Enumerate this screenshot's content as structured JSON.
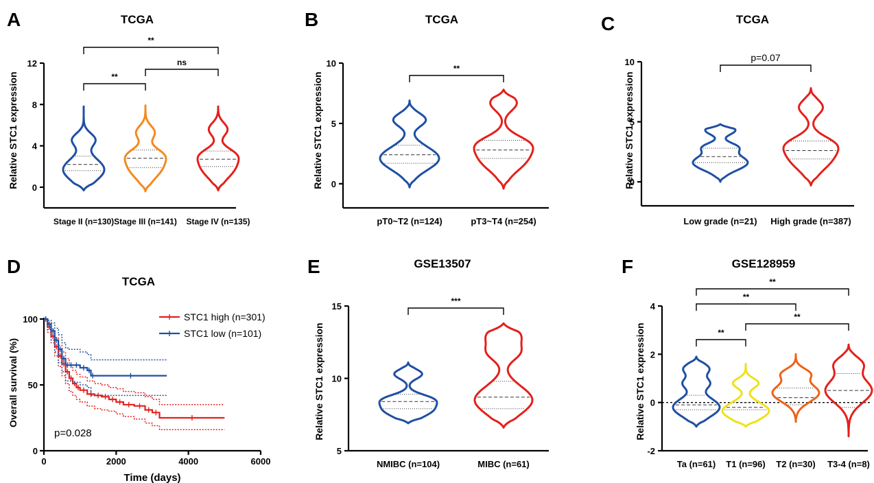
{
  "colors": {
    "blue": "#1f4fa3",
    "orange": "#f28a1e",
    "red": "#e3201b",
    "yellow": "#ede21a",
    "darkorange": "#ee6218"
  },
  "panels": {
    "A": {
      "letter": "A",
      "title": "TCGA"
    },
    "B": {
      "letter": "B",
      "title": "TCGA"
    },
    "C": {
      "letter": "C",
      "title": "TCGA"
    },
    "D": {
      "letter": "D",
      "title": "TCGA"
    },
    "E": {
      "letter": "E",
      "title": "GSE13507"
    },
    "F": {
      "letter": "F",
      "title": "GSE128959"
    }
  },
  "chart_data": [
    {
      "id": "A",
      "type": "violin",
      "title": "TCGA",
      "ylabel": "Relative STC1 expression",
      "xlabel": "",
      "ylim": [
        -2,
        12
      ],
      "yticks": [
        0,
        4,
        8,
        12
      ],
      "categories": [
        "Stage II (n=130)",
        "Stage III (n=141)",
        "Stage IV (n=135)"
      ],
      "colors": [
        "#1f4fa3",
        "#f28a1e",
        "#e3201b"
      ],
      "groups": [
        {
          "min": -0.3,
          "q1": 1.6,
          "median": 2.2,
          "q3": 3.0,
          "max": 7.8,
          "modes": [
            1.7,
            4.6
          ]
        },
        {
          "min": -0.4,
          "q1": 1.9,
          "median": 2.8,
          "q3": 3.6,
          "max": 7.9,
          "modes": [
            2.0,
            3.2,
            5.3
          ]
        },
        {
          "min": -0.3,
          "q1": 2.0,
          "median": 2.7,
          "q3": 3.5,
          "max": 7.8,
          "modes": [
            2.0,
            3.2,
            5.6
          ]
        }
      ],
      "significance": [
        {
          "from": 0,
          "to": 1,
          "label": "**"
        },
        {
          "from": 1,
          "to": 2,
          "label": "ns"
        },
        {
          "from": 0,
          "to": 2,
          "label": "**"
        }
      ]
    },
    {
      "id": "B",
      "type": "violin",
      "title": "TCGA",
      "ylabel": "Relative STC1 expression",
      "xlabel": "",
      "ylim": [
        -2,
        10
      ],
      "yticks": [
        0,
        5,
        10
      ],
      "categories": [
        "pT0~T2 (n=124)",
        "pT3~T4 (n=254)"
      ],
      "colors": [
        "#1f4fa3",
        "#e3201b"
      ],
      "groups": [
        {
          "min": -0.3,
          "q1": 1.7,
          "median": 2.4,
          "q3": 3.2,
          "max": 6.9,
          "modes": [
            2.1,
            5.3
          ]
        },
        {
          "min": -0.4,
          "q1": 2.1,
          "median": 2.8,
          "q3": 3.6,
          "max": 7.8,
          "modes": [
            2.2,
            3.4,
            6.7
          ]
        }
      ],
      "significance": [
        {
          "from": 0,
          "to": 1,
          "label": "**"
        }
      ]
    },
    {
      "id": "C",
      "type": "violin",
      "title": "TCGA",
      "ylabel": "Relative STC1 expression",
      "xlabel": "",
      "ylim": [
        -2,
        10
      ],
      "yticks": [
        0,
        5,
        10
      ],
      "categories": [
        "Low grade (n=21)",
        "High grade (n=387)"
      ],
      "colors": [
        "#1f4fa3",
        "#e3201b"
      ],
      "groups": [
        {
          "min": 0.0,
          "q1": 1.6,
          "median": 2.1,
          "q3": 2.8,
          "max": 4.8,
          "modes": [
            1.6,
            2.9,
            4.3
          ]
        },
        {
          "min": -0.3,
          "q1": 1.9,
          "median": 2.6,
          "q3": 3.4,
          "max": 7.8,
          "modes": [
            2.1,
            3.2,
            6.2
          ]
        }
      ],
      "significance": [
        {
          "from": 0,
          "to": 1,
          "label": "p=0.07"
        }
      ]
    },
    {
      "id": "D",
      "type": "line",
      "title": "TCGA",
      "xlabel": "Time (days)",
      "ylabel": "Overall survival (%)",
      "xlim": [
        0,
        6000
      ],
      "ylim": [
        0,
        100
      ],
      "xticks": [
        0,
        2000,
        4000,
        6000
      ],
      "yticks": [
        0,
        50,
        100
      ],
      "annotation": "p=0.028",
      "series": [
        {
          "name": "STC1 high (n=301)",
          "color": "#e3201b",
          "x": [
            0,
            100,
            200,
            300,
            400,
            500,
            600,
            700,
            800,
            900,
            1000,
            1200,
            1400,
            1600,
            1800,
            2000,
            2200,
            2500,
            2800,
            3000,
            3200,
            5000
          ],
          "y": [
            100,
            94,
            87,
            79,
            72,
            66,
            60,
            55,
            51,
            48,
            46,
            43,
            42,
            41,
            39,
            37,
            35,
            34,
            31,
            29,
            25,
            25
          ],
          "ci_upper": [
            100,
            97,
            92,
            86,
            80,
            75,
            70,
            65,
            61,
            58,
            56,
            53,
            51,
            50,
            48,
            47,
            45,
            44,
            41,
            39,
            35,
            35
          ],
          "ci_lower": [
            100,
            90,
            82,
            72,
            64,
            57,
            51,
            45,
            42,
            39,
            37,
            34,
            32,
            31,
            30,
            28,
            26,
            24,
            21,
            19,
            16,
            16
          ]
        },
        {
          "name": "STC1 low (n=101)",
          "color": "#1f4fa3",
          "x": [
            0,
            100,
            200,
            300,
            400,
            500,
            600,
            700,
            800,
            1000,
            1200,
            1300,
            1400,
            3400
          ],
          "y": [
            100,
            96,
            91,
            84,
            77,
            70,
            65,
            65,
            65,
            63,
            61,
            57,
            57,
            57
          ],
          "ci_upper": [
            100,
            99,
            97,
            93,
            88,
            82,
            78,
            77,
            77,
            75,
            73,
            69,
            69,
            69
          ],
          "ci_lower": [
            100,
            92,
            84,
            75,
            67,
            60,
            53,
            53,
            52,
            50,
            48,
            42,
            42,
            42
          ]
        }
      ]
    },
    {
      "id": "E",
      "type": "violin",
      "title": "GSE13507",
      "ylabel": "Relative STC1 expression",
      "xlabel": "",
      "ylim": [
        5,
        15
      ],
      "yticks": [
        5,
        10,
        15
      ],
      "categories": [
        "NMIBC (n=104)",
        "MIBC (n=61)"
      ],
      "colors": [
        "#1f4fa3",
        "#e3201b"
      ],
      "groups": [
        {
          "min": 6.9,
          "q1": 7.9,
          "median": 8.4,
          "q3": 8.9,
          "max": 11.1,
          "modes": [
            7.9,
            8.6,
            10.3
          ]
        },
        {
          "min": 6.6,
          "q1": 7.9,
          "median": 8.7,
          "q3": 9.8,
          "max": 13.8,
          "modes": [
            8.5,
            11.8,
            13.0
          ]
        }
      ],
      "significance": [
        {
          "from": 0,
          "to": 1,
          "label": "***"
        }
      ]
    },
    {
      "id": "F",
      "type": "violin",
      "title": "GSE128959",
      "ylabel": "Relative STC1 expression",
      "xlabel": "",
      "ylim": [
        -2,
        4
      ],
      "yticks": [
        -2,
        0,
        2,
        4
      ],
      "categories": [
        "Ta (n=61)",
        "T1 (n=96)",
        "T2 (n=30)",
        "T3-4 (n=8)"
      ],
      "colors": [
        "#1f4fa3",
        "#ede21a",
        "#ee6218",
        "#e3201b"
      ],
      "groups": [
        {
          "min": -1.0,
          "q1": -0.3,
          "median": -0.1,
          "q3": 0.3,
          "max": 1.9,
          "modes": [
            -0.2,
            0.8,
            1.4
          ]
        },
        {
          "min": -1.0,
          "q1": -0.3,
          "median": -0.2,
          "q3": 0.0,
          "max": 1.6,
          "modes": [
            -0.35,
            0.8
          ]
        },
        {
          "min": -0.8,
          "q1": -0.1,
          "median": 0.2,
          "q3": 0.6,
          "max": 2.0,
          "modes": [
            0.4,
            1.2
          ]
        },
        {
          "min": -1.4,
          "q1": -0.2,
          "median": 0.5,
          "q3": 1.2,
          "max": 2.4,
          "modes": [
            0.5,
            1.6
          ]
        }
      ],
      "refline": 0,
      "significance": [
        {
          "from": 0,
          "to": 1,
          "label": "**"
        },
        {
          "from": 1,
          "to": 3,
          "label": "**"
        },
        {
          "from": 0,
          "to": 2,
          "label": "**"
        },
        {
          "from": 0,
          "to": 3,
          "label": "**"
        }
      ]
    }
  ]
}
